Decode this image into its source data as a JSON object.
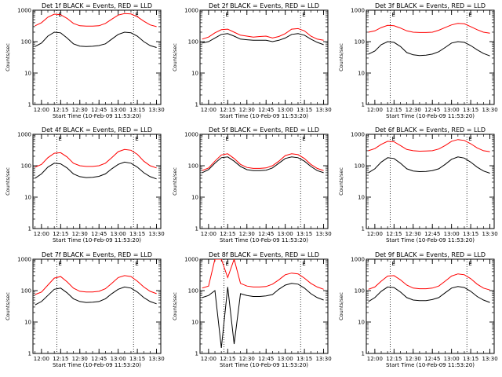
{
  "figure": {
    "panel_titles": [
      "Det 1f BLACK = Events, RED = LLD",
      "Det 2f BLACK = Events, RED = LLD",
      "Det 3f BLACK = Events, RED = LLD",
      "Det 4f BLACK = Events, RED = LLD",
      "Det 5f BLACK = Events, RED = LLD",
      "Det 6f BLACK = Events, RED = LLD",
      "Det 7f BLACK = Events, RED = LLD",
      "Det 8f BLACK = Events, RED = LLD",
      "Det 9f BLACK = Events, RED = LLD"
    ],
    "xlabel": "Start Time (10-Feb-09 11:53:20)",
    "ylabel": "Counts/sec",
    "xtick_labels": [
      "12:00",
      "12:15",
      "12:30",
      "12:45",
      "13:00",
      "13:15",
      "13:30"
    ],
    "ytick_labels": [
      "1",
      "10",
      "100",
      "1000"
    ],
    "marker_labels": [
      "E",
      "E"
    ],
    "colors": {
      "events": "#000000",
      "lld": "#ff0000",
      "axes": "#000000"
    }
  },
  "chart_data": {
    "type": "line",
    "layout": "3x3 grid of panels",
    "xlabel": "Start Time (10-Feb-09 11:53:20)",
    "ylabel": "Counts/sec",
    "y_scale": "log",
    "ylim": [
      1,
      1000
    ],
    "xlim": [
      "11:53:20",
      "13:33:20"
    ],
    "x_ticks": [
      "12:00",
      "12:15",
      "12:30",
      "12:45",
      "13:00",
      "13:15",
      "13:30"
    ],
    "vertical_markers": [
      {
        "time": "12:12:00",
        "label": "E",
        "style": "dotted"
      },
      {
        "time": "13:12:00",
        "label": "E",
        "style": "dotted"
      }
    ],
    "series_legend": {
      "BLACK": "Events",
      "RED": "LLD"
    },
    "x": [
      "11:55",
      "12:00",
      "12:05",
      "12:10",
      "12:15",
      "12:20",
      "12:25",
      "12:30",
      "12:35",
      "12:40",
      "12:45",
      "12:50",
      "12:55",
      "13:00",
      "13:05",
      "13:10",
      "13:15",
      "13:20",
      "13:25",
      "13:30"
    ],
    "panels": [
      {
        "title": "Det 1f BLACK = Events, RED = LLD",
        "series": [
          {
            "color": "black",
            "values": [
              70,
              90,
              150,
              200,
              190,
              130,
              85,
              72,
              70,
              71,
              75,
              85,
              120,
              170,
              200,
              190,
              150,
              100,
              75,
              65
            ]
          },
          {
            "color": "red",
            "values": [
              320,
              400,
              600,
              750,
              720,
              550,
              380,
              320,
              310,
              310,
              320,
              380,
              520,
              700,
              780,
              760,
              620,
              450,
              340,
              300
            ]
          }
        ]
      },
      {
        "title": "Det 2f BLACK = Events, RED = LLD",
        "series": [
          {
            "color": "black",
            "values": [
              90,
              100,
              130,
              170,
              180,
              150,
              120,
              115,
              110,
              110,
              110,
              100,
              110,
              130,
              170,
              180,
              160,
              120,
              95,
              80
            ]
          },
          {
            "color": "red",
            "values": [
              120,
              140,
              190,
              240,
              250,
              200,
              160,
              150,
              140,
              145,
              150,
              130,
              145,
              180,
              250,
              260,
              220,
              150,
              120,
              110
            ]
          }
        ]
      },
      {
        "title": "Det 3f BLACK = Events, RED = LLD",
        "series": [
          {
            "color": "black",
            "values": [
              40,
              50,
              80,
              100,
              95,
              70,
              45,
              38,
              36,
              37,
              40,
              48,
              65,
              90,
              100,
              95,
              75,
              55,
              42,
              35
            ]
          },
          {
            "color": "red",
            "values": [
              200,
              220,
              280,
              330,
              320,
              270,
              220,
              200,
              195,
              195,
              200,
              230,
              280,
              340,
              380,
              370,
              300,
              240,
              200,
              185
            ]
          }
        ]
      },
      {
        "title": "Det 4f BLACK = Events, RED = LLD",
        "series": [
          {
            "color": "black",
            "values": [
              40,
              55,
              90,
              120,
              115,
              85,
              55,
              45,
              42,
              43,
              46,
              55,
              80,
              110,
              130,
              120,
              90,
              60,
              45,
              38
            ]
          },
          {
            "color": "red",
            "values": [
              90,
              110,
              180,
              250,
              260,
              190,
              120,
              100,
              95,
              95,
              100,
              120,
              180,
              280,
              330,
              310,
              230,
              140,
              100,
              85
            ]
          }
        ]
      },
      {
        "title": "Det 5f BLACK = Events, RED = LLD",
        "series": [
          {
            "color": "black",
            "values": [
              60,
              75,
              120,
              180,
              190,
              140,
              95,
              75,
              70,
              70,
              72,
              85,
              120,
              170,
              190,
              180,
              140,
              95,
              70,
              60
            ]
          },
          {
            "color": "red",
            "values": [
              70,
              85,
              140,
              220,
              240,
              170,
              110,
              88,
              82,
              82,
              85,
              100,
              140,
              210,
              240,
              225,
              170,
              110,
              82,
              70
            ]
          }
        ]
      },
      {
        "title": "Det 6f BLACK = Events, RED = LLD",
        "series": [
          {
            "color": "black",
            "values": [
              60,
              80,
              130,
              180,
              170,
              120,
              80,
              68,
              65,
              66,
              70,
              80,
              110,
              160,
              190,
              175,
              130,
              90,
              68,
              58
            ]
          },
          {
            "color": "red",
            "values": [
              300,
              350,
              480,
              600,
              580,
              440,
              330,
              300,
              290,
              295,
              300,
              340,
              440,
              600,
              680,
              640,
              500,
              370,
              300,
              280
            ]
          }
        ]
      },
      {
        "title": "Det 7f BLACK = Events, RED = LLD",
        "series": [
          {
            "color": "black",
            "values": [
              35,
              45,
              70,
              110,
              120,
              85,
              55,
              45,
              42,
              43,
              45,
              55,
              80,
              110,
              130,
              120,
              90,
              60,
              45,
              38
            ]
          },
          {
            "color": "red",
            "values": [
              75,
              90,
              150,
              250,
              280,
              190,
              120,
              95,
              90,
              90,
              95,
              115,
              170,
              260,
              300,
              280,
              200,
              130,
              95,
              80
            ]
          }
        ]
      },
      {
        "title": "Det 8f BLACK = Events, RED = LLD",
        "series": [
          {
            "color": "black",
            "values": [
              60,
              70,
              100,
              1.5,
              130,
              2,
              80,
              70,
              65,
              65,
              68,
              75,
              110,
              150,
              170,
              160,
              120,
              80,
              60,
              50
            ]
          },
          {
            "color": "red",
            "values": [
              120,
              140,
              1000,
              1000,
              260,
              1000,
              170,
              140,
              130,
              130,
              135,
              160,
              220,
              320,
              360,
              340,
              250,
              170,
              130,
              110
            ]
          }
        ]
      },
      {
        "title": "Det 9f BLACK = Events, RED = LLD",
        "series": [
          {
            "color": "black",
            "values": [
              45,
              60,
              95,
              130,
              125,
              90,
              60,
              50,
              48,
              48,
              52,
              60,
              85,
              120,
              135,
              125,
              95,
              65,
              50,
              42
            ]
          },
          {
            "color": "red",
            "values": [
              110,
              130,
              200,
              290,
              300,
              220,
              150,
              120,
              115,
              115,
              120,
              140,
              200,
              290,
              340,
              320,
              240,
              160,
              120,
              105
            ]
          }
        ]
      }
    ]
  }
}
